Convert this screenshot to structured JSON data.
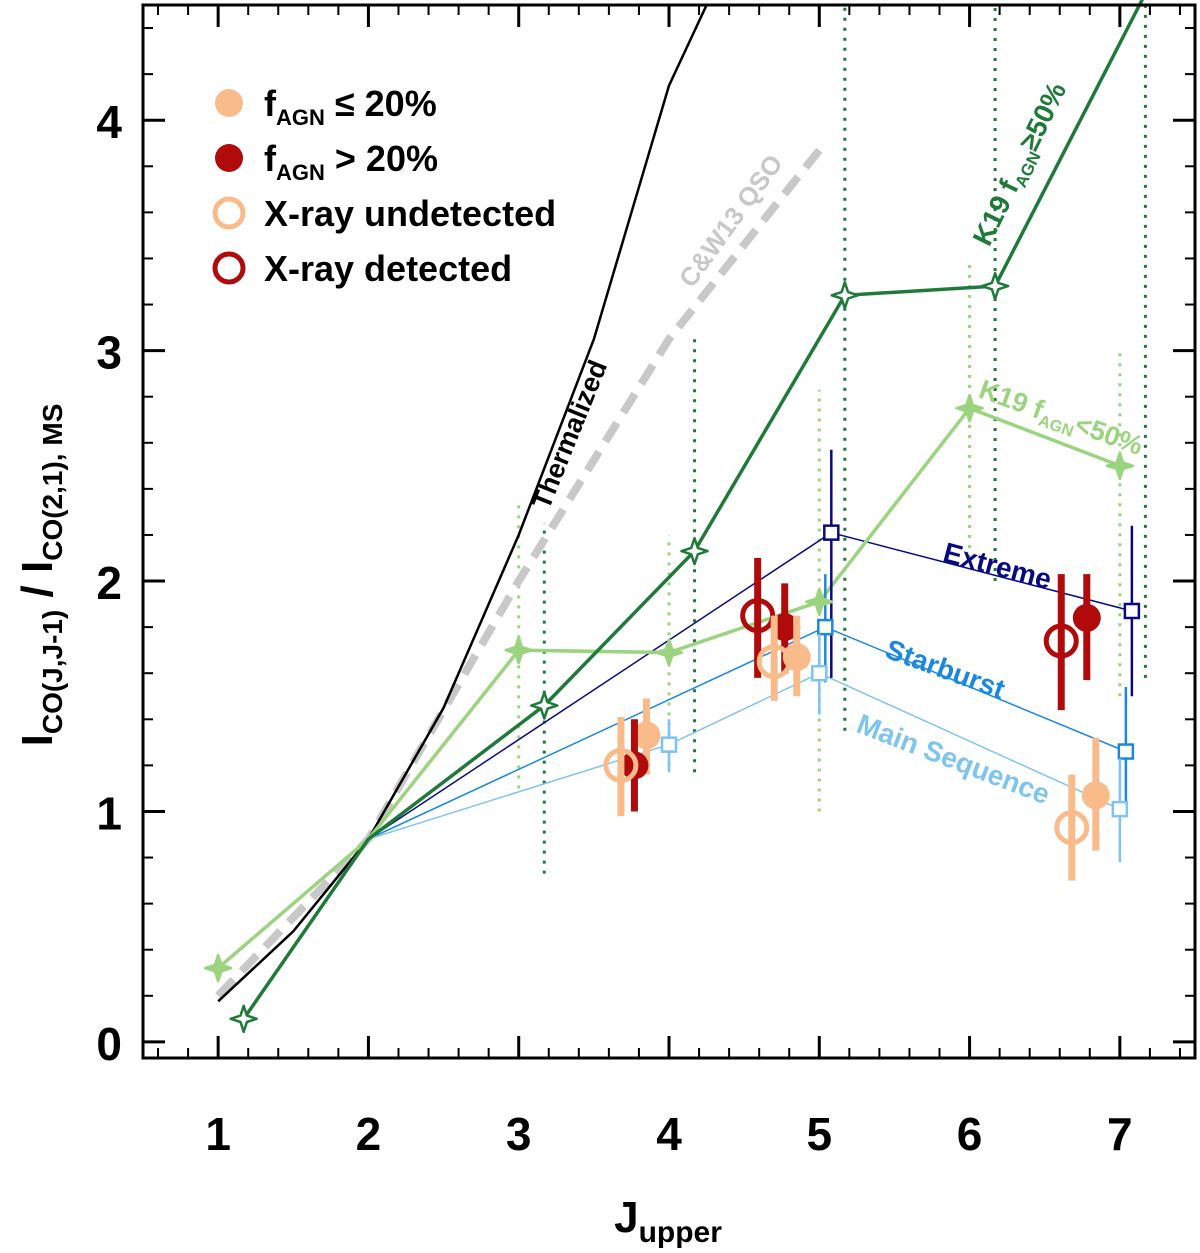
{
  "chart_data": {
    "type": "line",
    "xlabel": "J",
    "xlabel_sub": "upper",
    "ylabel_parts": [
      "I",
      "CO(J,J-1)",
      " / I",
      "CO(2,1), MS"
    ],
    "xlim": [
      0.5,
      7.5
    ],
    "ylim": [
      -0.07,
      4.5
    ],
    "x_ticks": [
      1,
      2,
      3,
      4,
      5,
      6,
      7
    ],
    "x_tick_labels": [
      "1",
      "2",
      "3",
      "4",
      "5",
      "6",
      "7"
    ],
    "y_ticks": [
      0,
      1,
      2,
      3,
      4
    ],
    "y_tick_labels": [
      "0",
      "1",
      "2",
      "3",
      "4"
    ],
    "y_minor_step": 0.2,
    "x_minor_step": 0.2,
    "colors": {
      "thermalized": "#000000",
      "qso": "#c8c8c8",
      "k19_high": "#1f7a3a",
      "k19_low": "#9bd37f",
      "extreme": "#0a0a80",
      "starburst": "#1a88e0",
      "main_sequence": "#7ec4ec",
      "agn_low": "#f9bb8a",
      "agn_high": "#b00a0a"
    },
    "thermalized": {
      "label": "Thermalized",
      "x": [
        1,
        1.5,
        2,
        2.5,
        3,
        3.5,
        4,
        4.25
      ],
      "y": [
        0.176,
        0.48,
        0.88,
        1.45,
        2.2,
        3.05,
        4.15,
        4.5
      ]
    },
    "qso": {
      "label": "C&W13 QSO",
      "x": [
        1,
        2,
        3,
        4,
        5
      ],
      "y": [
        0.2,
        0.88,
        2.0,
        3.05,
        3.87
      ]
    },
    "k19_high": {
      "label_main": "K19 f",
      "label_sub": "AGN",
      "label_rest": "≥50%",
      "x": [
        1.17,
        2,
        3.17,
        4.17,
        5.17,
        6.17,
        7.17
      ],
      "y": [
        0.1,
        0.88,
        1.46,
        2.13,
        3.24,
        3.28,
        4.55
      ],
      "err_low": [
        null,
        null,
        0.73,
        1.17,
        1.35,
        2.0,
        1.58
      ],
      "err_high": [
        null,
        null,
        2.25,
        3.08,
        4.5,
        4.5,
        4.5
      ]
    },
    "k19_low": {
      "label_main": "K19 f",
      "label_sub": "AGN",
      "label_rest": "<50%",
      "x": [
        1,
        2,
        3,
        4,
        5,
        6,
        7
      ],
      "y": [
        0.32,
        0.88,
        1.7,
        1.69,
        1.91,
        2.75,
        2.5
      ],
      "err_low": [
        null,
        null,
        1.1,
        1.2,
        1.0,
        2.1,
        1.5
      ],
      "err_high": [
        null,
        null,
        2.35,
        2.2,
        2.83,
        3.4,
        3.0
      ]
    },
    "model_lines": [
      {
        "key": "extreme",
        "label": "Extreme",
        "x": [
          2,
          5.08,
          7.08
        ],
        "y": [
          0.88,
          2.21,
          1.87
        ],
        "err_low": [
          null,
          1.58,
          1.5
        ],
        "err_high": [
          null,
          2.57,
          2.24
        ]
      },
      {
        "key": "starburst",
        "label": "Starburst",
        "x": [
          2,
          5.04,
          7.04
        ],
        "y": [
          0.88,
          1.8,
          1.26
        ],
        "err_low": [
          null,
          1.56,
          0.98
        ],
        "err_high": [
          null,
          2.03,
          1.54
        ]
      },
      {
        "key": "main_sequence",
        "label": "Main Sequence",
        "x": [
          2,
          4,
          5,
          7
        ],
        "y": [
          0.88,
          1.29,
          1.6,
          1.01
        ],
        "err_low": [
          null,
          1.17,
          1.42,
          0.78
        ],
        "err_high": [
          null,
          1.4,
          1.77,
          1.23
        ]
      }
    ],
    "points": [
      {
        "group": "fagn_low",
        "x": 3.85,
        "y": 1.33,
        "err": [
          1.16,
          1.49
        ]
      },
      {
        "group": "fagn_high",
        "x": 3.77,
        "y": 1.2,
        "err": [
          1.0,
          1.4
        ]
      },
      {
        "group": "xray_undetected",
        "x": 3.68,
        "y": 1.2,
        "err": [
          0.98,
          1.41
        ]
      },
      {
        "group": "xray_detected",
        "x": 4.59,
        "y": 1.85,
        "err": [
          1.58,
          2.1
        ]
      },
      {
        "group": "fagn_high",
        "x": 4.77,
        "y": 1.8,
        "err": [
          1.6,
          1.99
        ]
      },
      {
        "group": "xray_undetected",
        "x": 4.7,
        "y": 1.65,
        "err": [
          1.48,
          1.85
        ]
      },
      {
        "group": "fagn_low",
        "x": 4.85,
        "y": 1.67,
        "err": [
          1.5,
          1.85
        ]
      },
      {
        "group": "xray_detected",
        "x": 6.61,
        "y": 1.74,
        "err": [
          1.44,
          2.03
        ]
      },
      {
        "group": "fagn_high",
        "x": 6.78,
        "y": 1.84,
        "err": [
          1.57,
          2.03
        ]
      },
      {
        "group": "xray_undetected",
        "x": 6.68,
        "y": 0.93,
        "err": [
          0.7,
          1.16
        ]
      },
      {
        "group": "fagn_low",
        "x": 6.84,
        "y": 1.07,
        "err": [
          0.83,
          1.32
        ]
      }
    ],
    "legend": {
      "position": "top-left",
      "items": [
        {
          "key": "fagn_low",
          "text_main": "f",
          "text_sub": "AGN",
          "text_rest": " ≤ 20%"
        },
        {
          "key": "fagn_high",
          "text_main": "f",
          "text_sub": "AGN",
          "text_rest": " > 20%"
        },
        {
          "key": "xray_undetected",
          "text_main": "X-ray undetected",
          "text_sub": "",
          "text_rest": ""
        },
        {
          "key": "xray_detected",
          "text_main": "X-ray detected",
          "text_sub": "",
          "text_rest": ""
        }
      ]
    }
  }
}
